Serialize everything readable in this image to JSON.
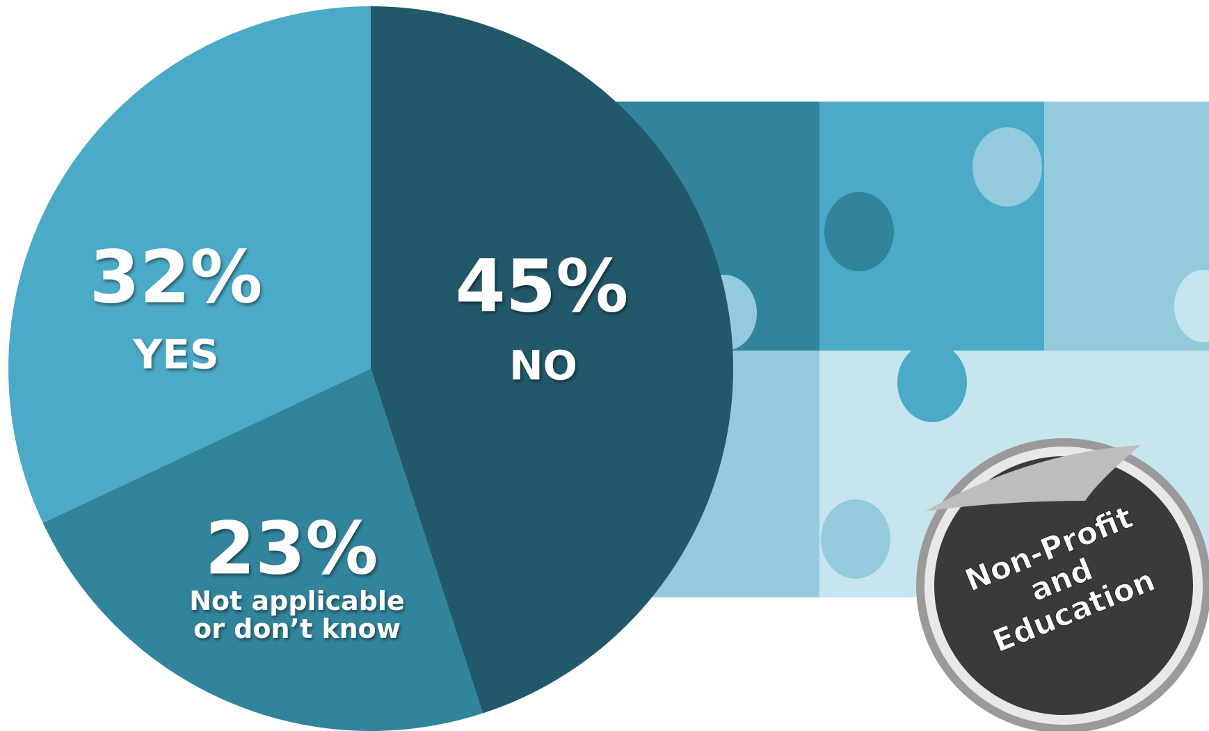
{
  "chart_data": {
    "type": "pie",
    "categories": [
      "NO",
      "Not applicable or don’t know",
      "YES"
    ],
    "values": [
      45,
      23,
      32
    ],
    "value_labels": [
      "45%",
      "23%",
      "32%"
    ],
    "colors": [
      "#22596a",
      "#32849d",
      "#4aaac7"
    ],
    "annotations": [
      "Non-Profit",
      "and",
      "Education"
    ]
  }
}
